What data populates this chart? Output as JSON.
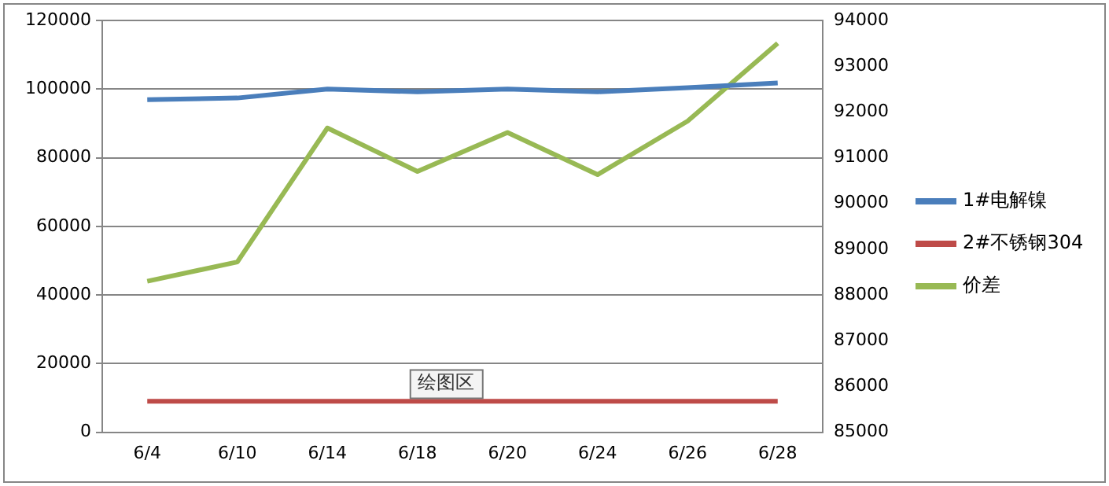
{
  "chart_data": {
    "type": "line",
    "categories": [
      "6/4",
      "6/10",
      "6/14",
      "6/18",
      "6/20",
      "6/24",
      "6/26",
      "6/28"
    ],
    "series": [
      {
        "name": "1#电解镍",
        "color": "#4a7ebb",
        "values": [
          96900,
          97400,
          100000,
          99200,
          100000,
          99200,
          100400,
          101800
        ]
      },
      {
        "name": "2#不锈钢304",
        "color": "#be4b48",
        "values": [
          9000,
          9000,
          9000,
          9000,
          9000,
          9000,
          9000,
          9000
        ]
      },
      {
        "name": "价差",
        "color": "#98b954",
        "axis": "y2",
        "values": [
          88300,
          88720,
          91650,
          90700,
          91550,
          90630,
          91800,
          93500
        ]
      }
    ],
    "ylim": [
      0,
      120000
    ],
    "yticks": [
      0,
      20000,
      40000,
      60000,
      80000,
      100000,
      120000
    ],
    "y2lim": [
      85000,
      94000
    ],
    "y2ticks": [
      85000,
      86000,
      87000,
      88000,
      89000,
      90000,
      91000,
      92000,
      93000,
      94000
    ],
    "grid": "y",
    "legend": "right",
    "marker": "none",
    "line_style": "solid",
    "annotations": [
      "绘图区"
    ]
  }
}
